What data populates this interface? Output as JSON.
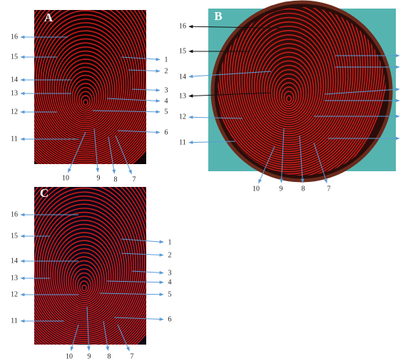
{
  "panels": [
    {
      "letter": "A",
      "labels": [
        "1",
        "2",
        "3",
        "4",
        "5",
        "6",
        "7",
        "8",
        "9",
        "10",
        "11",
        "12",
        "13",
        "14",
        "15",
        "16"
      ]
    },
    {
      "letter": "B",
      "labels": [
        "7",
        "8",
        "9",
        "10",
        "11",
        "12",
        "13",
        "14",
        "15",
        "16"
      ]
    },
    {
      "letter": "C",
      "labels": [
        "1",
        "2",
        "3",
        "4",
        "5",
        "6",
        "7",
        "8",
        "9",
        "10",
        "11",
        "12",
        "13",
        "14",
        "15",
        "16"
      ]
    }
  ]
}
